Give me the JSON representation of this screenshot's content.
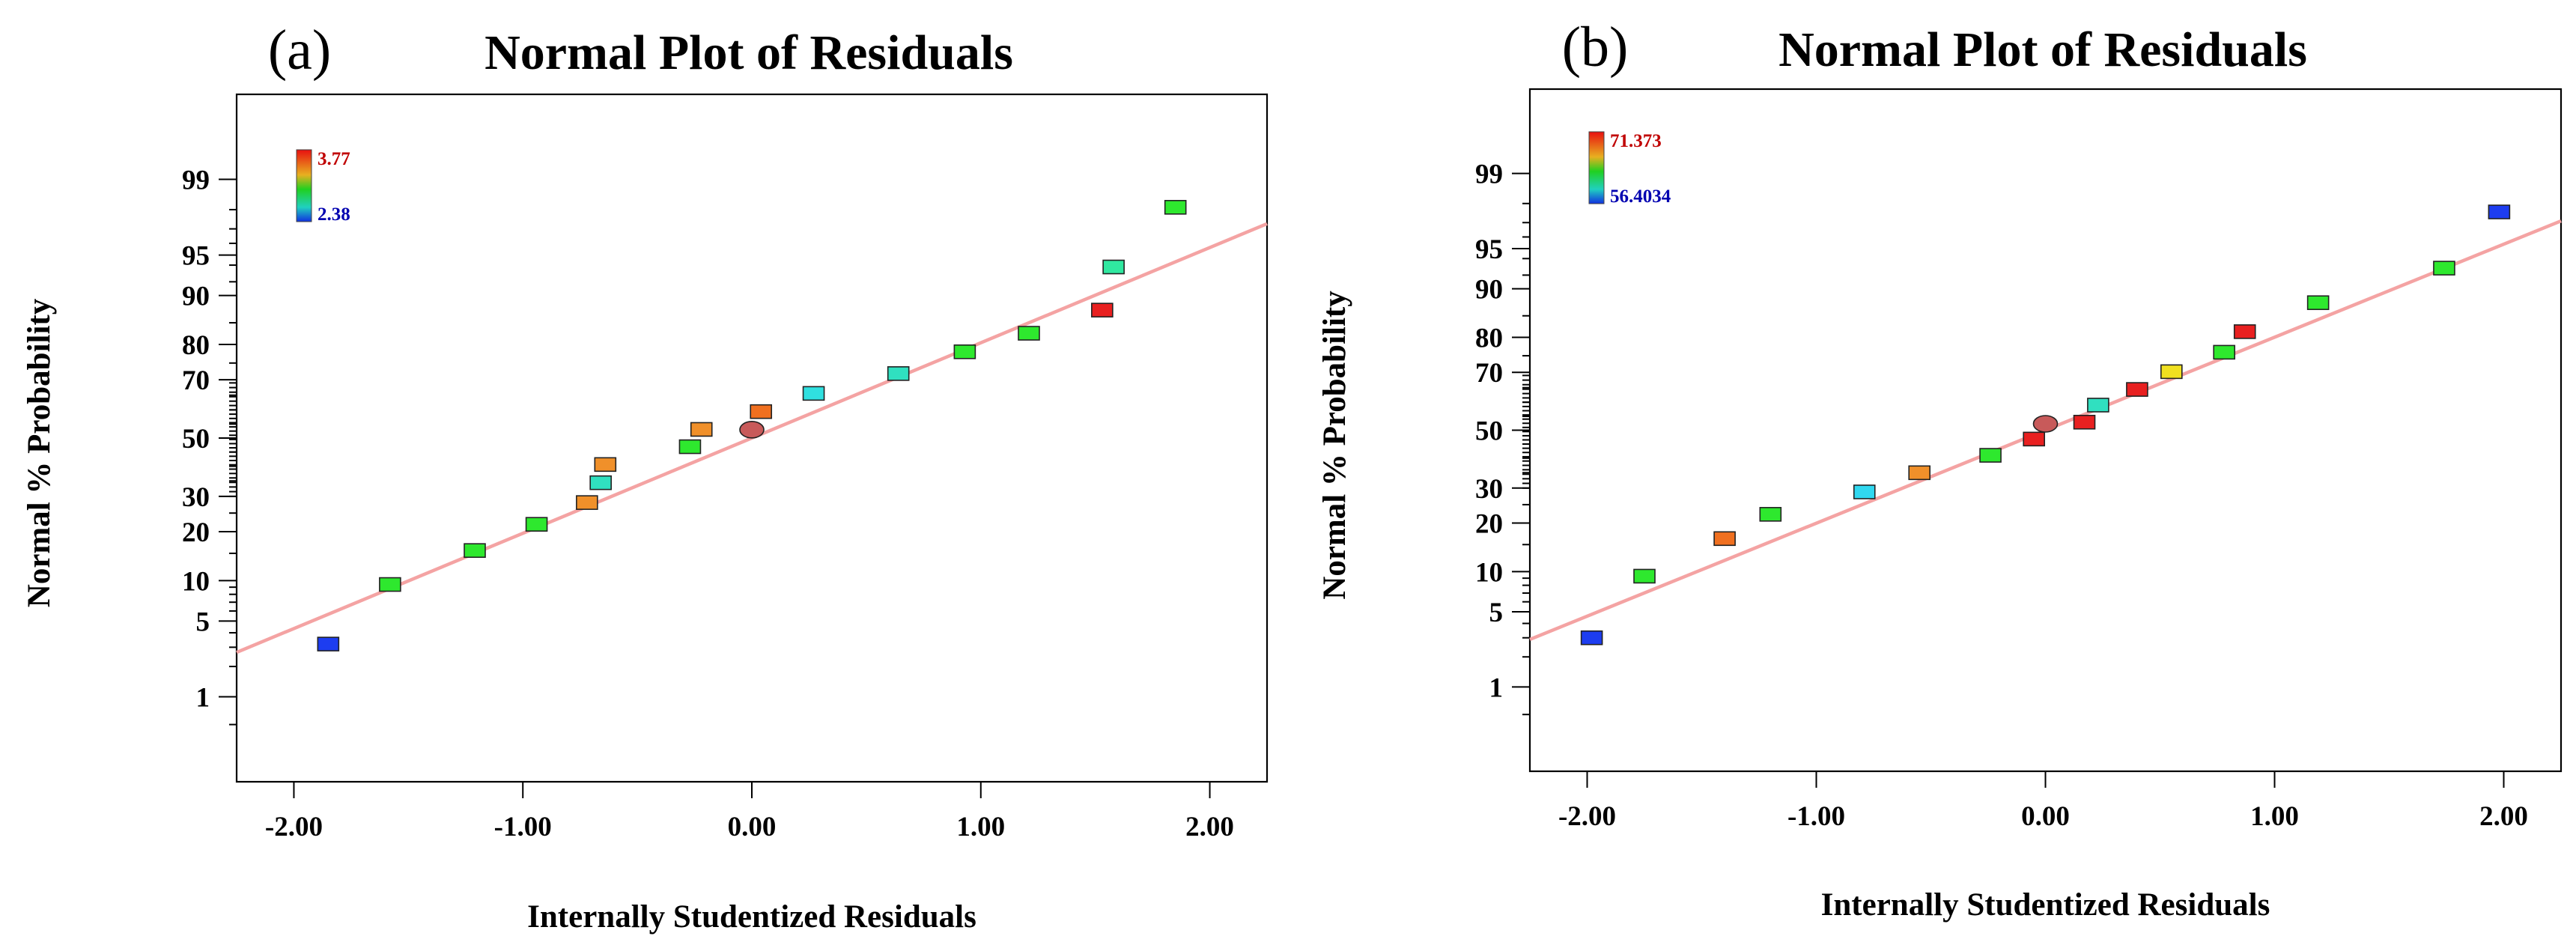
{
  "chart_data": [
    {
      "type": "scatter",
      "panel_label": "(a)",
      "title": "Normal Plot of Residuals",
      "xlabel": "Internally Studentized Residuals",
      "ylabel": "Normal % Probability",
      "xlim": [
        -2.25,
        2.25
      ],
      "x_ticks": [
        -2,
        -1,
        0,
        1,
        2
      ],
      "x_tick_labels": [
        "-2.00",
        "-1.00",
        "0.00",
        "1.00",
        "2.00"
      ],
      "y_scale": "normal-probability",
      "ylim": [
        0.1,
        99.9
      ],
      "y_ticks": [
        1,
        5,
        10,
        20,
        30,
        50,
        70,
        80,
        90,
        95,
        99
      ],
      "y_tick_labels": [
        "1",
        "5",
        "10",
        "20",
        "30",
        "50",
        "70",
        "80",
        "90",
        "95",
        "99"
      ],
      "legend": {
        "placement": "top-left",
        "high_label": "3.77",
        "low_label": "2.38"
      },
      "fit_line": {
        "x": [
          -2.25,
          2.25
        ],
        "y": [
          2.7,
          97.3
        ]
      },
      "points": [
        {
          "x": -1.85,
          "y": 3.2,
          "color": "#1d3df0"
        },
        {
          "x": -1.58,
          "y": 9.4,
          "color": "#2ee82e"
        },
        {
          "x": -1.21,
          "y": 15.6,
          "color": "#2ee82e"
        },
        {
          "x": -0.94,
          "y": 21.9,
          "color": "#2ee82e"
        },
        {
          "x": -0.72,
          "y": 28.1,
          "color": "#f0902a"
        },
        {
          "x": -0.66,
          "y": 34.4,
          "color": "#30e0c0"
        },
        {
          "x": -0.64,
          "y": 40.6,
          "color": "#f0902a"
        },
        {
          "x": -0.27,
          "y": 46.9,
          "color": "#2ee82e"
        },
        {
          "x": -0.22,
          "y": 53.1,
          "color": "#f0902a"
        },
        {
          "x": 0.0,
          "y": 53.0,
          "color": "#c85a5a",
          "marker": "ellipse"
        },
        {
          "x": 0.04,
          "y": 59.4,
          "color": "#f07020"
        },
        {
          "x": 0.27,
          "y": 65.6,
          "color": "#30e0e0"
        },
        {
          "x": 0.64,
          "y": 71.9,
          "color": "#30e0c0"
        },
        {
          "x": 0.93,
          "y": 78.1,
          "color": "#2ee82e"
        },
        {
          "x": 1.21,
          "y": 82.7,
          "color": "#2ee82e"
        },
        {
          "x": 1.53,
          "y": 87.5,
          "color": "#e82020"
        },
        {
          "x": 1.58,
          "y": 93.8,
          "color": "#30e8a0"
        },
        {
          "x": 1.85,
          "y": 98.1,
          "color": "#2ee82e"
        }
      ]
    },
    {
      "type": "scatter",
      "panel_label": "(b)",
      "title": "Normal Plot of Residuals",
      "xlabel": "Internally Studentized Residuals",
      "ylabel": "Normal % Probability",
      "xlim": [
        -2.25,
        2.25
      ],
      "x_ticks": [
        -2,
        -1,
        0,
        1,
        2
      ],
      "x_tick_labels": [
        "-2.00",
        "-1.00",
        "0.00",
        "1.00",
        "2.00"
      ],
      "y_scale": "normal-probability",
      "ylim": [
        0.1,
        99.9
      ],
      "y_ticks": [
        1,
        5,
        10,
        20,
        30,
        50,
        70,
        80,
        90,
        95,
        99
      ],
      "y_tick_labels": [
        "1",
        "5",
        "10",
        "20",
        "30",
        "50",
        "70",
        "80",
        "90",
        "95",
        "99"
      ],
      "legend": {
        "placement": "top-left",
        "high_label": "71.373",
        "low_label": "56.4034"
      },
      "fit_line": {
        "x": [
          -2.25,
          2.25
        ],
        "y": [
          2.9,
          97.1
        ]
      },
      "points": [
        {
          "x": -1.98,
          "y": 3.0,
          "color": "#1d3df0"
        },
        {
          "x": -1.75,
          "y": 9.3,
          "color": "#2ee82e"
        },
        {
          "x": -1.4,
          "y": 16.3,
          "color": "#f07020"
        },
        {
          "x": -1.2,
          "y": 22.3,
          "color": "#2ee82e"
        },
        {
          "x": -0.79,
          "y": 28.8,
          "color": "#30d8f0"
        },
        {
          "x": -0.55,
          "y": 35.0,
          "color": "#f0902a"
        },
        {
          "x": -0.24,
          "y": 41.0,
          "color": "#2ee82e"
        },
        {
          "x": -0.05,
          "y": 46.8,
          "color": "#e82020"
        },
        {
          "x": 0.0,
          "y": 52.3,
          "color": "#c85a5a",
          "marker": "ellipse"
        },
        {
          "x": 0.17,
          "y": 52.9,
          "color": "#e82020"
        },
        {
          "x": 0.23,
          "y": 59.0,
          "color": "#30e0c0"
        },
        {
          "x": 0.4,
          "y": 64.4,
          "color": "#e82020"
        },
        {
          "x": 0.55,
          "y": 70.2,
          "color": "#f0e020"
        },
        {
          "x": 0.78,
          "y": 76.0,
          "color": "#2ee82e"
        },
        {
          "x": 0.87,
          "y": 81.4,
          "color": "#e82020"
        },
        {
          "x": 1.19,
          "y": 87.6,
          "color": "#2ee82e"
        },
        {
          "x": 1.74,
          "y": 92.9,
          "color": "#2ee82e"
        },
        {
          "x": 1.98,
          "y": 97.6,
          "color": "#1d3df0"
        }
      ]
    }
  ]
}
